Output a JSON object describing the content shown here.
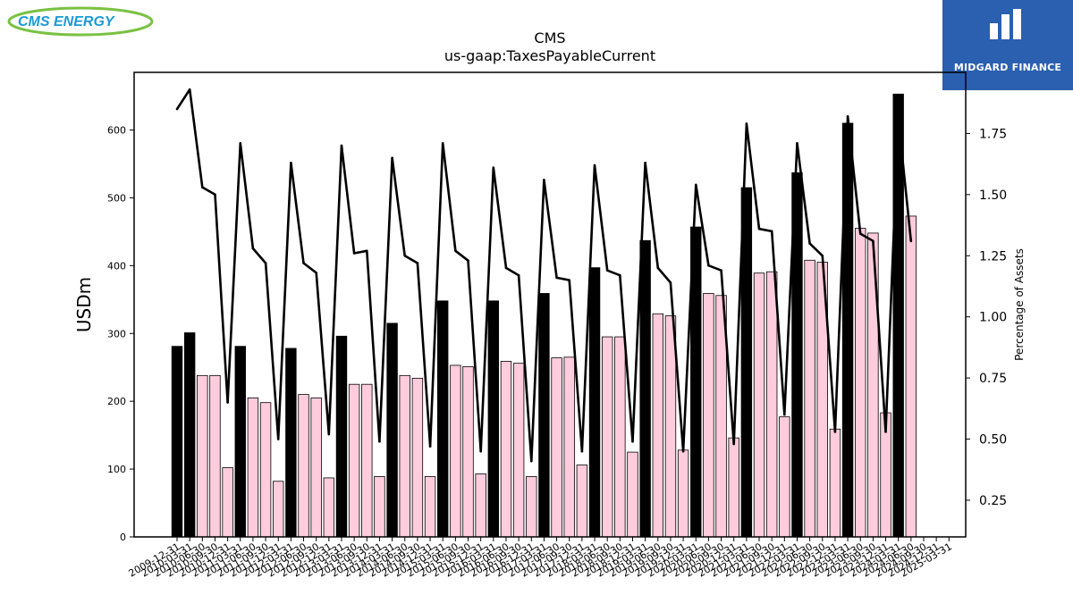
{
  "branding": {
    "left_logo_text": "CMS ENERGY",
    "right_logo_text": "MIDGARD FINANCE",
    "colors": {
      "cms_blue": "#1a9ad6",
      "cms_green": "#7ac143",
      "midgard_blue": "#2b5fb0"
    }
  },
  "chart_data": {
    "type": "bar",
    "title": "CMS",
    "subtitle": "us-gaap:TaxesPayableCurrent",
    "ylabel": "USDm",
    "y2label": "Percentage of Assets",
    "ylim": [
      0,
      685
    ],
    "y2lim": [
      0.1,
      2.0
    ],
    "yticks": [
      0,
      100,
      200,
      300,
      400,
      500,
      600
    ],
    "y2ticks": [
      "0.25",
      "0.50",
      "0.75",
      "1.00",
      "1.25",
      "1.50",
      "1.75"
    ],
    "colors": {
      "annual_bar": "#000000",
      "quarter_bar": "#ffccdd",
      "bar_edge": "#000000",
      "line": "#000000"
    },
    "categories": [
      "2009-12-31",
      "2010-03-31",
      "2010-06-30",
      "2010-09-30",
      "2010-12-31",
      "2011-03-31",
      "2011-06-30",
      "2011-09-30",
      "2011-12-31",
      "2012-03-31",
      "2012-06-30",
      "2012-09-30",
      "2012-12-31",
      "2013-03-31",
      "2013-06-30",
      "2013-09-30",
      "2013-12-31",
      "2014-03-31",
      "2014-06-30",
      "2014-09-30",
      "2014-12-31",
      "2015-03-31",
      "2015-06-30",
      "2015-09-30",
      "2015-12-31",
      "2016-03-31",
      "2016-06-30",
      "2016-09-30",
      "2016-12-31",
      "2017-03-31",
      "2017-06-30",
      "2017-09-30",
      "2017-12-31",
      "2018-03-31",
      "2018-06-30",
      "2018-09-30",
      "2018-12-31",
      "2019-03-31",
      "2019-06-30",
      "2019-09-30",
      "2019-12-31",
      "2020-03-31",
      "2020-06-30",
      "2020-09-30",
      "2020-12-31",
      "2021-03-31",
      "2021-06-30",
      "2021-09-30",
      "2021-12-31",
      "2022-03-31",
      "2022-06-30",
      "2022-09-30",
      "2022-12-31",
      "2023-03-31",
      "2023-06-30",
      "2023-09-30",
      "2023-12-31",
      "2024-03-31",
      "2024-06-30",
      "2024-09-30",
      "2024-12-31",
      "2025-03-31"
    ],
    "series": [
      {
        "values": [
          281,
          301,
          238,
          238,
          102,
          281,
          205,
          198,
          82,
          278,
          210,
          205,
          87,
          296,
          225,
          225,
          89,
          315,
          238,
          234,
          89,
          348,
          253,
          251,
          93,
          348,
          259,
          256,
          89,
          359,
          264,
          265,
          106,
          397,
          295,
          295,
          125,
          437,
          329,
          326,
          128,
          457,
          359,
          356,
          146,
          515,
          389,
          391,
          177,
          537,
          408,
          405,
          159,
          610,
          455,
          448,
          183,
          653,
          473,
          null,
          null,
          null
        ],
        "annual_flags": [
          true,
          true,
          false,
          false,
          false,
          true,
          false,
          false,
          false,
          true,
          false,
          false,
          false,
          true,
          false,
          false,
          false,
          true,
          false,
          false,
          false,
          true,
          false,
          false,
          false,
          true,
          false,
          false,
          false,
          true,
          false,
          false,
          false,
          true,
          false,
          false,
          false,
          true,
          false,
          false,
          false,
          true,
          false,
          false,
          false,
          true,
          false,
          false,
          false,
          true,
          false,
          false,
          false,
          true,
          false,
          false,
          false,
          true,
          false,
          false,
          false,
          false
        ]
      },
      {
        "axis": "right",
        "values": [
          1.85,
          1.93,
          1.53,
          1.5,
          0.65,
          1.71,
          1.28,
          1.22,
          0.5,
          1.63,
          1.22,
          1.18,
          0.52,
          1.7,
          1.26,
          1.27,
          0.49,
          1.65,
          1.25,
          1.22,
          0.47,
          1.71,
          1.27,
          1.23,
          0.45,
          1.61,
          1.2,
          1.17,
          0.41,
          1.56,
          1.16,
          1.15,
          0.45,
          1.62,
          1.19,
          1.17,
          0.49,
          1.63,
          1.2,
          1.14,
          0.45,
          1.54,
          1.21,
          1.19,
          0.48,
          1.79,
          1.36,
          1.35,
          0.6,
          1.71,
          1.3,
          1.25,
          0.53,
          1.82,
          1.34,
          1.31,
          0.53,
          1.81,
          1.31,
          null,
          null,
          null
        ]
      }
    ]
  }
}
